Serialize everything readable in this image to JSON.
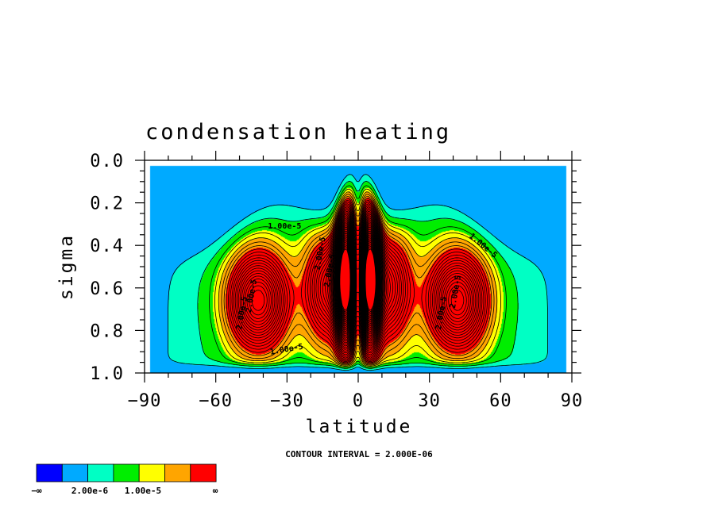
{
  "chart_data": {
    "type": "contour",
    "title": "condensation heating",
    "xlabel": "latitude",
    "ylabel": "sigma",
    "xlim": [
      -90,
      90
    ],
    "ylim": [
      1.0,
      0.0
    ],
    "x_ticks": [
      -90,
      -60,
      -30,
      0,
      30,
      60,
      90
    ],
    "x_tick_labels": [
      "−90",
      "−60",
      "−30",
      "0",
      "30",
      "60",
      "90"
    ],
    "y_ticks": [
      0.0,
      0.2,
      0.4,
      0.6,
      0.8,
      1.0
    ],
    "y_tick_labels": [
      "0.0",
      "0.2",
      "0.4",
      "0.6",
      "0.8",
      "1.0"
    ],
    "contour_interval_text": "CONTOUR INTERVAL = 2.000E-06",
    "contour_interval": 2e-06,
    "contour_labels": [
      {
        "text": "1.00e-5",
        "lat": -31,
        "sigma": 0.32,
        "angle": 0
      },
      {
        "text": "1.00e-5",
        "lat": 52,
        "sigma": 0.41,
        "angle": 40
      },
      {
        "text": "1.00e-5",
        "lat": -30,
        "sigma": 0.9,
        "angle": -10
      },
      {
        "text": "2.00e-5",
        "lat": -48,
        "sigma": 0.72,
        "angle": -80
      },
      {
        "text": "2.00e-5",
        "lat": -44,
        "sigma": 0.64,
        "angle": -80
      },
      {
        "text": "2.00e-5",
        "lat": -15,
        "sigma": 0.44,
        "angle": -80
      },
      {
        "text": "2.00e-5",
        "lat": -11,
        "sigma": 0.52,
        "angle": -80
      },
      {
        "text": "2.00e-5",
        "lat": 36,
        "sigma": 0.72,
        "angle": -80
      },
      {
        "text": "2.00e-5",
        "lat": 42,
        "sigma": 0.62,
        "angle": -80
      }
    ],
    "colorbar": {
      "colors": [
        "#0000ff",
        "#00aaff",
        "#00ffc4",
        "#00ee00",
        "#ffff00",
        "#ffa500",
        "#ff0000"
      ],
      "labels": [
        "−∞",
        "2.00e-6",
        "1.00e-5",
        "∞"
      ]
    },
    "field": {
      "background_level": 1,
      "cells": [
        {
          "lat": -42,
          "sigma": 0.66,
          "peak": 4.2e-05,
          "sx": 12,
          "sy": 0.22
        },
        {
          "lat": 42,
          "sigma": 0.66,
          "peak": 4.2e-05,
          "sx": 12,
          "sy": 0.22
        },
        {
          "lat": -5,
          "sigma": 0.55,
          "peak": 9e-05,
          "sx": 4,
          "sy": 0.3
        },
        {
          "lat": 5,
          "sigma": 0.55,
          "peak": 9e-05,
          "sx": 4,
          "sy": 0.3
        },
        {
          "lat": -12,
          "sigma": 0.6,
          "peak": 3.2e-05,
          "sx": 10,
          "sy": 0.25
        },
        {
          "lat": 12,
          "sigma": 0.6,
          "peak": 3.2e-05,
          "sx": 10,
          "sy": 0.25
        }
      ]
    }
  },
  "labels": {
    "title": "condensation heating",
    "xlabel": "latitude",
    "ylabel": "sigma",
    "contour_interval": "CONTOUR INTERVAL = 2.000E-06",
    "cb_minus_inf": "−∞",
    "cb_low": "2.00e-6",
    "cb_high": "1.00e-5",
    "cb_inf": "∞"
  }
}
